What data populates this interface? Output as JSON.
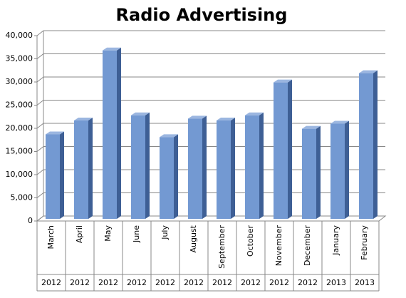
{
  "chart_data": {
    "type": "bar",
    "title": "Radio Advertising",
    "categories": [
      "March",
      "April",
      "May",
      "June",
      "July",
      "August",
      "September",
      "October",
      "November",
      "December",
      "January",
      "February"
    ],
    "years": [
      "2012",
      "2012",
      "2012",
      "2012",
      "2012",
      "2012",
      "2012",
      "2012",
      "2012",
      "2012",
      "2013",
      "2013"
    ],
    "values": [
      18700,
      21700,
      36800,
      22800,
      18100,
      22100,
      21700,
      22800,
      29900,
      19900,
      21000,
      31900
    ],
    "color": "#7399d2",
    "ylim": [
      0,
      40000
    ],
    "yticks": [
      0,
      {
        "value": 5000,
        "label": "5,000"
      },
      {
        "value": 10000,
        "label": "10,000"
      },
      {
        "value": 15000,
        "label": "15,000"
      },
      {
        "value": 20000,
        "label": "20,000"
      },
      {
        "value": 25000,
        "label": "25,000"
      },
      {
        "value": 30000,
        "label": "30,000"
      },
      {
        "value": 35000,
        "label": "35,000"
      },
      {
        "value": 40000,
        "label": "40,000"
      }
    ],
    "grid": true
  }
}
